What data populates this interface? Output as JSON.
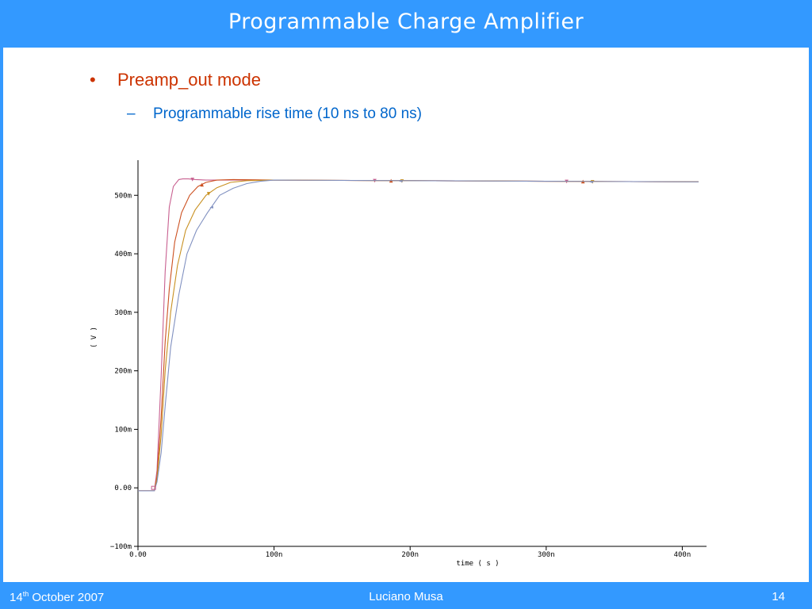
{
  "slide": {
    "title": "Programmable Charge Amplifier",
    "bullet_mark": "•",
    "bullet": "Preamp_out mode",
    "sub_mark": "–",
    "sub_bullet": "Programmable rise time (10 ns to 80 ns)"
  },
  "footer": {
    "date_day": "14",
    "date_sup": "th",
    "date_rest": " October 2007",
    "author": "Luciano Musa",
    "page": "14"
  },
  "colors": {
    "frame": "#3399ff",
    "bullet": "#cc3300",
    "sub_bullet": "#0066cc"
  },
  "chart_data": {
    "type": "line",
    "xlabel": "time ( s )",
    "ylabel": "( V )",
    "xlim": [
      0,
      4.12e-07
    ],
    "ylim": [
      -0.1,
      0.56
    ],
    "x_ticks": [
      0,
      1e-07,
      2e-07,
      3e-07,
      4e-07
    ],
    "x_tick_labels": [
      "0.00",
      "100n",
      "200n",
      "300n",
      "400n"
    ],
    "y_ticks": [
      -0.1,
      0,
      0.1,
      0.2,
      0.3,
      0.4,
      0.5
    ],
    "y_tick_labels": [
      "−100m",
      "0.00",
      "100m",
      "200m",
      "300m",
      "400m",
      "500m"
    ],
    "grid": false,
    "series": [
      {
        "color": "#c86090",
        "marker": "▼",
        "x": [
          0,
          1.2e-08,
          1.4e-08,
          1.7e-08,
          2e-08,
          2.3e-08,
          2.6e-08,
          3e-08,
          3.3e-08,
          3.7e-08,
          4.2e-08,
          5e-08,
          6e-08,
          1e-07,
          2e-07,
          3e-07,
          4.12e-07
        ],
        "y": [
          -0.005,
          -0.005,
          0.03,
          0.19,
          0.37,
          0.48,
          0.515,
          0.527,
          0.528,
          0.528,
          0.527,
          0.526,
          0.526,
          0.526,
          0.525,
          0.524,
          0.523
        ],
        "markers_x": [
          4e-08,
          1.74e-07,
          3.15e-07
        ]
      },
      {
        "color": "#cc5020",
        "marker": "▲",
        "x": [
          0,
          1.2e-08,
          1.4e-08,
          1.7e-08,
          2e-08,
          2.3e-08,
          2.7e-08,
          3.2e-08,
          3.8e-08,
          4.4e-08,
          5e-08,
          5.8e-08,
          7e-08,
          1e-07,
          2e-07,
          3e-07,
          4.12e-07
        ],
        "y": [
          -0.005,
          -0.005,
          0.02,
          0.12,
          0.25,
          0.34,
          0.42,
          0.47,
          0.5,
          0.515,
          0.522,
          0.526,
          0.527,
          0.526,
          0.525,
          0.524,
          0.523
        ],
        "markers_x": [
          4.7e-08,
          1.86e-07,
          3.27e-07
        ]
      },
      {
        "color": "#c89020",
        "marker": "▼",
        "x": [
          0,
          1.2e-08,
          1.4e-08,
          1.7e-08,
          2e-08,
          2.4e-08,
          2.9e-08,
          3.5e-08,
          4.2e-08,
          5e-08,
          5.8e-08,
          6.8e-08,
          8e-08,
          1e-07,
          2e-07,
          3e-07,
          4.12e-07
        ],
        "y": [
          -0.005,
          -0.005,
          0.015,
          0.09,
          0.2,
          0.3,
          0.38,
          0.44,
          0.475,
          0.5,
          0.513,
          0.522,
          0.525,
          0.526,
          0.525,
          0.524,
          0.523
        ],
        "markers_x": [
          5.2e-08,
          1.94e-07,
          3.34e-07
        ]
      },
      {
        "color": "#8090c0",
        "marker": "◄",
        "x": [
          0,
          1.2e-08,
          1.4e-08,
          1.7e-08,
          2e-08,
          2.4e-08,
          3e-08,
          3.6e-08,
          4.3e-08,
          5.1e-08,
          6e-08,
          7e-08,
          8e-08,
          9e-08,
          1e-07,
          2e-07,
          3e-07,
          4.12e-07
        ],
        "y": [
          -0.005,
          -0.005,
          0.01,
          0.06,
          0.14,
          0.24,
          0.33,
          0.4,
          0.44,
          0.47,
          0.5,
          0.512,
          0.52,
          0.524,
          0.526,
          0.525,
          0.524,
          0.523
        ],
        "markers_x": [
          5.4e-08,
          1.93e-07,
          3.33e-07
        ]
      }
    ]
  }
}
